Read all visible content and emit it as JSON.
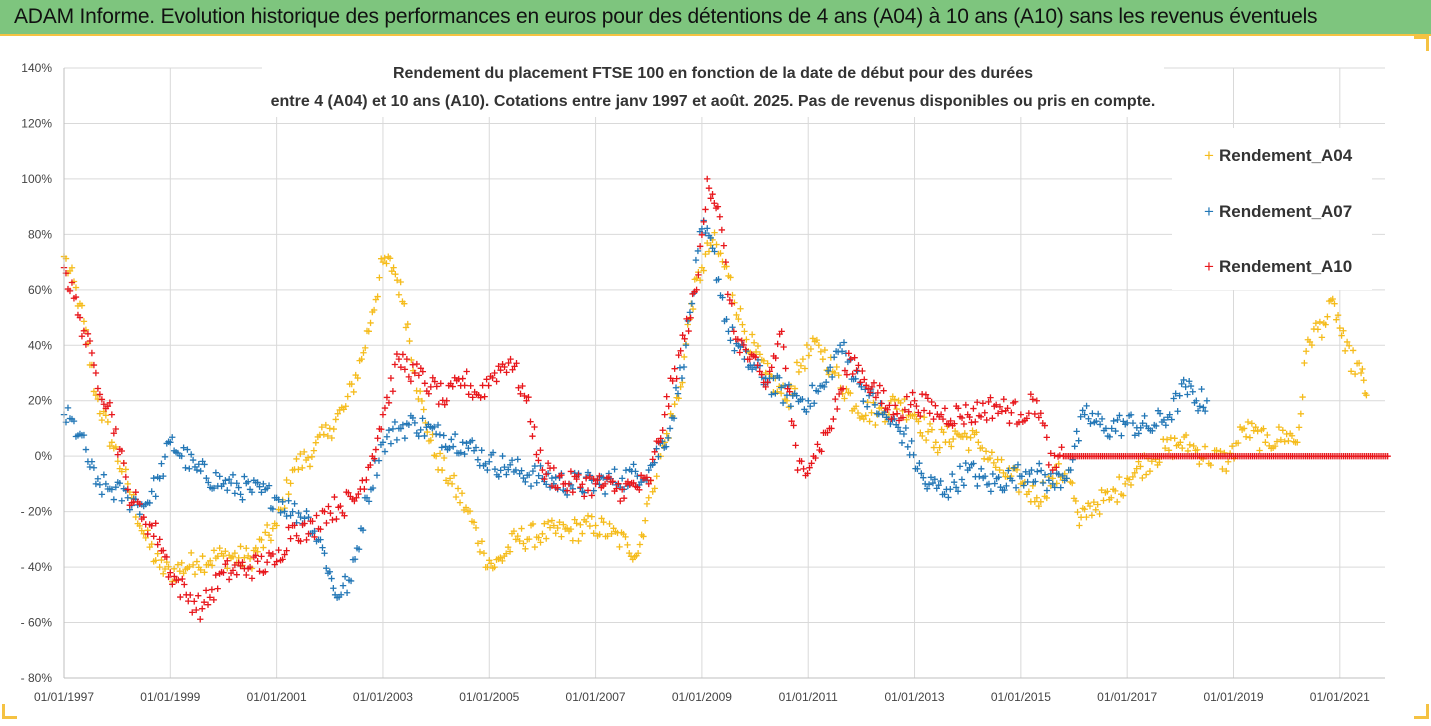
{
  "banner": {
    "title": "ADAM Informe. Evolution historique des performances en euros pour des détentions de 4 ans (A04) à 10 ans (A10) sans les revenus éventuels"
  },
  "colors": {
    "banner_bg": "#7ec57e",
    "accent": "#f5c242",
    "A04": "#f5bc1c",
    "A07": "#2377b6",
    "A10": "#e8171c"
  },
  "chart_data": {
    "type": "scatter",
    "title_lines": [
      "Rendement du placement FTSE 100 en fonction de la date de début pour des durées",
      "entre 4 (A04) et 10 ans (A10). Cotations entre janv 1997 et août. 2025. Pas de revenus disponibles ou pris en compte."
    ],
    "xlabel": "",
    "ylabel": "",
    "ylim": [
      -80,
      140
    ],
    "y_ticks": [
      "140%",
      "120%",
      "100%",
      "80%",
      "60%",
      "40%",
      "20%",
      "0%",
      "- 20%",
      "- 40%",
      "- 60%",
      "- 80%"
    ],
    "x_ticks": [
      "01/01/1997",
      "01/01/1999",
      "01/01/2001",
      "01/01/2003",
      "01/01/2005",
      "01/01/2007",
      "01/01/2009",
      "01/01/2011",
      "01/01/2013",
      "01/01/2015",
      "01/01/2017",
      "01/01/2019",
      "01/01/2021"
    ],
    "legend_position": "right",
    "grid": true,
    "marker": "+",
    "series": [
      {
        "name": "Rendement_A04",
        "x": [
          1997.0,
          1997.3,
          1997.6,
          1997.9,
          1998.2,
          1998.5,
          1998.8,
          1999.0,
          1999.5,
          2000.0,
          2000.5,
          2001.0,
          2001.3,
          2001.7,
          2002.0,
          2002.3,
          2002.6,
          2002.8,
          2003.0,
          2003.2,
          2003.4,
          2003.6,
          2003.8,
          2004.0,
          2004.3,
          2004.6,
          2004.9,
          2005.1,
          2005.5,
          2006.0,
          2006.5,
          2007.0,
          2007.3,
          2007.6,
          2007.8,
          2008.0,
          2008.3,
          2008.6,
          2008.8,
          2009.0,
          2009.2,
          2009.5,
          2009.8,
          2010.2,
          2010.6,
          2010.9,
          2011.2,
          2011.5,
          2011.9,
          2012.3,
          2012.7,
          2013.0,
          2013.4,
          2013.8,
          2014.2,
          2014.6,
          2015.0,
          2015.3,
          2015.6,
          2015.9,
          2016.1,
          2016.3,
          2016.7,
          2017.0,
          2017.5,
          2018.0,
          2018.5,
          2018.9,
          2019.2,
          2019.6,
          2020.0,
          2020.2,
          2020.4,
          2020.7,
          2020.9,
          2021.1,
          2021.4,
          2021.5
        ],
        "y": [
          72,
          55,
          22,
          5,
          -10,
          -28,
          -40,
          -42,
          -38,
          -36,
          -37,
          -25,
          -5,
          2,
          10,
          18,
          35,
          52,
          70,
          68,
          55,
          30,
          12,
          0,
          -10,
          -20,
          -35,
          -40,
          -30,
          -28,
          -27,
          -25,
          -28,
          -32,
          -35,
          -15,
          5,
          25,
          55,
          68,
          78,
          65,
          45,
          30,
          20,
          35,
          40,
          30,
          18,
          15,
          20,
          15,
          5,
          8,
          5,
          -5,
          -10,
          -15,
          -8,
          -5,
          -25,
          -18,
          -15,
          -8,
          0,
          5,
          0,
          -2,
          10,
          5,
          8,
          5,
          42,
          48,
          55,
          38,
          30,
          22
        ]
      },
      {
        "name": "Rendement_A07",
        "x": [
          1997.0,
          1997.3,
          1997.6,
          1997.9,
          1998.2,
          1998.5,
          1998.8,
          1999.0,
          1999.5,
          2000.0,
          2000.5,
          2001.0,
          2001.3,
          2001.6,
          2001.9,
          2002.1,
          2002.4,
          2002.7,
          2003.0,
          2003.3,
          2003.6,
          2004.0,
          2004.5,
          2005.0,
          2005.5,
          2006.0,
          2006.5,
          2007.0,
          2007.5,
          2008.0,
          2008.4,
          2008.7,
          2009.0,
          2009.2,
          2009.5,
          2009.8,
          2010.2,
          2010.6,
          2011.0,
          2011.3,
          2011.6,
          2012.0,
          2012.4,
          2012.8,
          2013.2,
          2013.6,
          2014.0,
          2014.4,
          2014.8,
          2015.2,
          2015.6,
          2015.9,
          2016.2,
          2016.6,
          2017.0,
          2017.4,
          2017.8,
          2018.1,
          2018.3,
          2018.5
        ],
        "y": [
          15,
          8,
          -10,
          -12,
          -15,
          -18,
          -8,
          5,
          -5,
          -10,
          -12,
          -15,
          -20,
          -22,
          -35,
          -50,
          -45,
          -15,
          5,
          10,
          12,
          8,
          5,
          -2,
          -5,
          -8,
          -10,
          -10,
          -8,
          -5,
          10,
          40,
          82,
          75,
          45,
          35,
          28,
          22,
          20,
          25,
          40,
          25,
          15,
          8,
          -10,
          -12,
          -5,
          -10,
          -8,
          -5,
          -10,
          -5,
          15,
          10,
          12,
          10,
          15,
          25,
          20,
          20
        ]
      },
      {
        "name": "Rendement_A10",
        "x": [
          1997.0,
          1997.3,
          1997.6,
          1997.9,
          1998.2,
          1998.5,
          1998.8,
          1999.0,
          1999.3,
          1999.6,
          2000.0,
          2000.5,
          2001.0,
          2001.3,
          2001.6,
          2001.9,
          2002.2,
          2002.5,
          2002.8,
          2003.0,
          2003.3,
          2003.6,
          2003.9,
          2004.2,
          2004.5,
          2004.8,
          2005.1,
          2005.4,
          2005.7,
          2006.0,
          2006.5,
          2007.0,
          2007.5,
          2008.0,
          2008.3,
          2008.6,
          2008.9,
          2009.1,
          2009.3,
          2009.6,
          2009.9,
          2010.2,
          2010.5,
          2010.8,
          2011.1,
          2011.4,
          2011.8,
          2012.2,
          2012.6,
          2013.0,
          2013.5,
          2014.0,
          2014.5,
          2015.0,
          2015.3,
          2015.6,
          2015.8,
          2016.0,
          2017.0,
          2018.0,
          2019.0,
          2020.0,
          2021.0,
          2021.9
        ],
        "y": [
          68,
          50,
          30,
          15,
          -12,
          -22,
          -30,
          -42,
          -50,
          -55,
          -42,
          -40,
          -38,
          -25,
          -28,
          -20,
          -18,
          -15,
          0,
          15,
          35,
          30,
          25,
          20,
          28,
          22,
          30,
          35,
          20,
          -5,
          -10,
          -10,
          -12,
          -10,
          15,
          38,
          60,
          100,
          90,
          45,
          35,
          25,
          45,
          -5,
          0,
          10,
          35,
          25,
          15,
          20,
          15,
          15,
          18,
          15,
          20,
          -5,
          0,
          0,
          0,
          0,
          0,
          0,
          0,
          0
        ]
      }
    ]
  },
  "legend": {
    "a04": "Rendement_A04",
    "a07": "Rendement_A07",
    "a10": "Rendement_A10"
  }
}
